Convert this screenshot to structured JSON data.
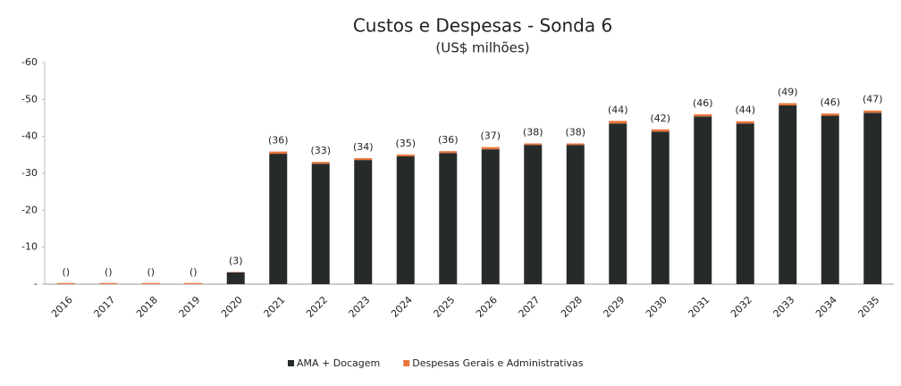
{
  "chart_data": {
    "type": "stacked_bar",
    "title": "Custos e Despesas - Sonda 6",
    "subtitle": "(US$ milhões)",
    "categories": [
      "2016",
      "2017",
      "2018",
      "2019",
      "2020",
      "2021",
      "2022",
      "2023",
      "2024",
      "2025",
      "2026",
      "2027",
      "2028",
      "2029",
      "2030",
      "2031",
      "2032",
      "2033",
      "2034",
      "2035"
    ],
    "series": [
      {
        "name": "AMA + Docagem",
        "color": "#262b2a",
        "values": [
          0,
          0,
          0,
          0,
          -3.2,
          -35.3,
          -32.6,
          -33.6,
          -34.6,
          -35.5,
          -36.5,
          -37.7,
          -37.7,
          -43.5,
          -41.3,
          -45.4,
          -43.5,
          -48.4,
          -45.6,
          -46.4
        ]
      },
      {
        "name": "Despesas Gerais e Administrativas",
        "color": "#e8743b",
        "values": [
          -0.3,
          -0.3,
          -0.3,
          -0.3,
          -0.1,
          -0.6,
          -0.5,
          -0.5,
          -0.5,
          -0.5,
          -0.6,
          -0.4,
          -0.4,
          -0.7,
          -0.6,
          -0.6,
          -0.6,
          -0.6,
          -0.6,
          -0.6
        ]
      }
    ],
    "totals": [
      -0.3,
      -0.3,
      -0.3,
      -0.3,
      -3.3,
      -35.9,
      -33.1,
      -34.1,
      -35.1,
      -36.0,
      -37.1,
      -38.1,
      -38.1,
      -44.2,
      -41.9,
      -46.0,
      -44.1,
      -49.0,
      -46.2,
      -47.0
    ],
    "total_labels": [
      "()",
      "()",
      "()",
      "()",
      "(3)",
      "(36)",
      "(33)",
      "(34)",
      "(35)",
      "(36)",
      "(37)",
      "(38)",
      "(38)",
      "(44)",
      "(42)",
      "(46)",
      "(44)",
      "(49)",
      "(46)",
      "(47)"
    ],
    "ylim": [
      0,
      -60
    ],
    "yticks": [
      {
        "value": 0,
        "label": "-"
      },
      -10,
      -20,
      -30,
      -40,
      -50,
      -60
    ],
    "legend": "bottom"
  }
}
